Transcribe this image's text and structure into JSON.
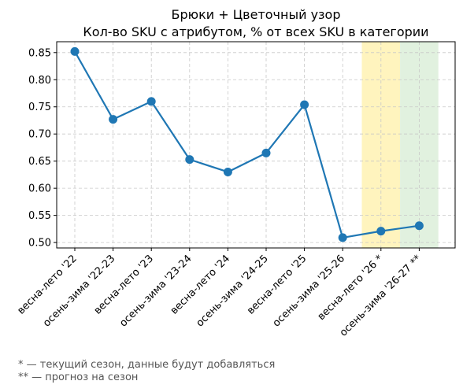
{
  "chart_data": {
    "type": "line",
    "title": "Брюки + Цветочный узор",
    "subtitle": "Кол-во SKU с атрибутом, % от всех SKU в категории",
    "xlabel": "",
    "ylabel": "",
    "categories": [
      "весна-лето '22",
      "осень-зима '22-23",
      "весна-лето '23",
      "осень-зима '23-24",
      "весна-лето '24",
      "осень-зима '24-25",
      "весна-лето '25",
      "осень-зима '25-26",
      "весна-лето '26 *",
      "осень-зима '26-27 **"
    ],
    "series": [
      {
        "values": [
          0.852,
          0.727,
          0.76,
          0.653,
          0.63,
          0.665,
          0.754,
          0.509,
          0.521,
          0.531
        ]
      }
    ],
    "ylim": [
      0.49,
      0.87
    ],
    "yticks": [
      0.5,
      0.55,
      0.6,
      0.65,
      0.7,
      0.75,
      0.8,
      0.85
    ],
    "grid": true,
    "line_color": "#1f77b4",
    "highlight_current": {
      "category_index": 8,
      "color": "#fff2b3"
    },
    "highlight_forecast": {
      "category_index": 9,
      "color": "#dcefd9"
    }
  },
  "footnotes": [
    "* — текущий сезон, данные будут добавляться",
    "** — прогноз на сезон"
  ]
}
